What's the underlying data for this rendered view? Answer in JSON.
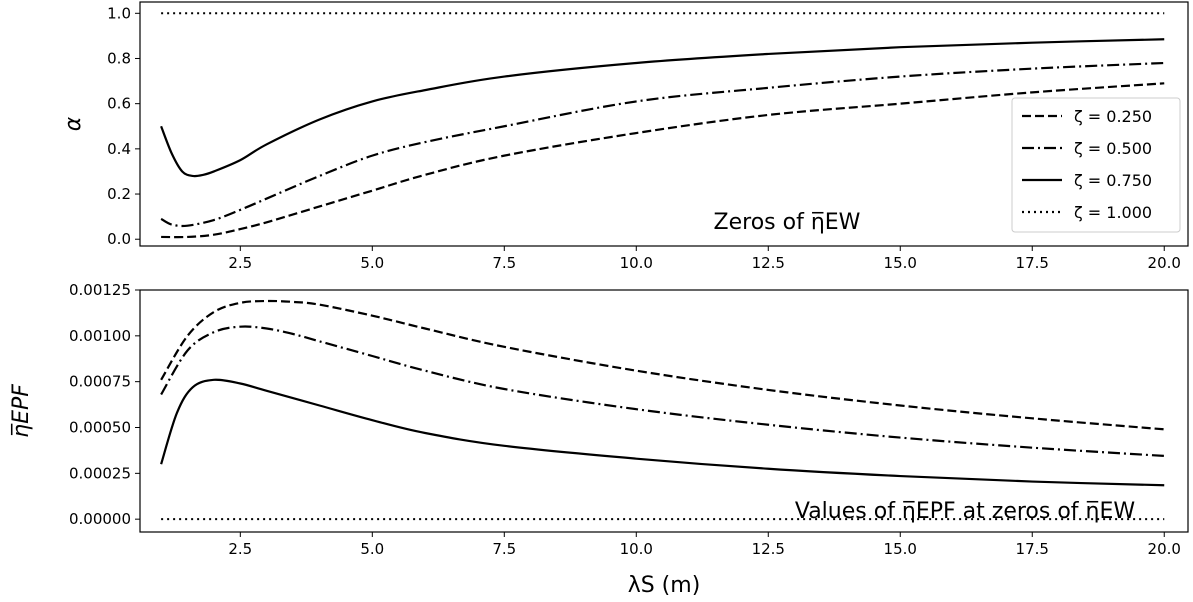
{
  "chart_data": [
    {
      "type": "line",
      "ylabel": "α",
      "annotation": "Zeros of η̅EW",
      "xlim": [
        0.6,
        20.45
      ],
      "ylim": [
        -0.03,
        1.05
      ],
      "xticks": [
        2.5,
        5.0,
        7.5,
        10.0,
        12.5,
        15.0,
        17.5,
        20.0
      ],
      "xtick_labels": [
        "2.5",
        "5.0",
        "7.5",
        "10.0",
        "12.5",
        "15.0",
        "17.5",
        "20.0"
      ],
      "yticks": [
        0.0,
        0.2,
        0.4,
        0.6,
        0.8,
        1.0
      ],
      "ytick_labels": [
        "0.0",
        "0.2",
        "0.4",
        "0.6",
        "0.8",
        "1.0"
      ],
      "legend_position": "right",
      "legend": [
        "ζ = 0.250",
        "ζ = 0.500",
        "ζ = 0.750",
        "ζ = 1.000"
      ],
      "series": [
        {
          "style": "dashed",
          "x": [
            1.0,
            1.5,
            2.0,
            2.5,
            3.0,
            4.0,
            5.0,
            6.0,
            7.5,
            10.0,
            12.5,
            15.0,
            17.5,
            20.0
          ],
          "y": [
            0.01,
            0.01,
            0.02,
            0.045,
            0.075,
            0.145,
            0.215,
            0.285,
            0.37,
            0.47,
            0.55,
            0.6,
            0.65,
            0.69
          ]
        },
        {
          "style": "dashdot",
          "x": [
            1.0,
            1.2,
            1.5,
            2.0,
            2.5,
            3.0,
            4.0,
            5.0,
            6.0,
            7.5,
            10.0,
            12.5,
            15.0,
            17.5,
            20.0
          ],
          "y": [
            0.09,
            0.065,
            0.06,
            0.085,
            0.13,
            0.18,
            0.28,
            0.37,
            0.43,
            0.5,
            0.61,
            0.67,
            0.72,
            0.755,
            0.78
          ]
        },
        {
          "style": "solid",
          "x": [
            1.0,
            1.2,
            1.4,
            1.6,
            1.8,
            2.0,
            2.5,
            3.0,
            4.0,
            5.0,
            6.0,
            7.5,
            10.0,
            12.5,
            15.0,
            17.5,
            20.0
          ],
          "y": [
            0.5,
            0.38,
            0.3,
            0.28,
            0.285,
            0.3,
            0.35,
            0.42,
            0.53,
            0.61,
            0.66,
            0.72,
            0.78,
            0.82,
            0.85,
            0.87,
            0.885
          ]
        },
        {
          "style": "dotted",
          "x": [
            1.0,
            20.0
          ],
          "y": [
            1.0,
            1.0
          ]
        }
      ]
    },
    {
      "type": "line",
      "ylabel": "η̅EPF",
      "xlabel": "λS (m)",
      "annotation": "Values of η̅EPF at zeros of η̅EW",
      "xlim": [
        0.6,
        20.45
      ],
      "ylim": [
        -7e-05,
        0.00125
      ],
      "xticks": [
        2.5,
        5.0,
        7.5,
        10.0,
        12.5,
        15.0,
        17.5,
        20.0
      ],
      "xtick_labels": [
        "2.5",
        "5.0",
        "7.5",
        "10.0",
        "12.5",
        "15.0",
        "17.5",
        "20.0"
      ],
      "yticks": [
        0.0,
        0.00025,
        0.0005,
        0.00075,
        0.001,
        0.00125
      ],
      "ytick_labels": [
        "0.00000",
        "0.00025",
        "0.00050",
        "0.00075",
        "0.00100",
        "0.00125"
      ],
      "series": [
        {
          "style": "dashed",
          "x": [
            1.0,
            1.5,
            2.0,
            2.5,
            3.0,
            3.5,
            4.0,
            5.0,
            6.0,
            7.5,
            10.0,
            12.5,
            15.0,
            17.5,
            20.0
          ],
          "y": [
            0.00076,
            0.001,
            0.00113,
            0.00118,
            0.00119,
            0.001185,
            0.00117,
            0.00111,
            0.00104,
            0.00094,
            0.00081,
            0.000705,
            0.00062,
            0.00055,
            0.00049
          ]
        },
        {
          "style": "dashdot",
          "x": [
            1.0,
            1.5,
            2.0,
            2.5,
            3.0,
            3.5,
            4.0,
            5.0,
            6.0,
            7.5,
            10.0,
            12.5,
            15.0,
            17.5,
            20.0
          ],
          "y": [
            0.00068,
            0.00092,
            0.00102,
            0.00105,
            0.00104,
            0.00101,
            0.00097,
            0.00089,
            0.00081,
            0.00071,
            0.0006,
            0.000515,
            0.000445,
            0.00039,
            0.000345
          ]
        },
        {
          "style": "solid",
          "x": [
            1.0,
            1.3,
            1.6,
            2.0,
            2.5,
            3.0,
            4.0,
            5.0,
            6.0,
            7.5,
            10.0,
            12.5,
            15.0,
            17.5,
            20.0
          ],
          "y": [
            0.0003,
            0.00058,
            0.00072,
            0.00076,
            0.00074,
            0.0007,
            0.00062,
            0.00054,
            0.00047,
            0.0004,
            0.00033,
            0.000275,
            0.000235,
            0.000205,
            0.000185
          ]
        },
        {
          "style": "dotted",
          "x": [
            1.0,
            20.0
          ],
          "y": [
            0.0,
            0.0
          ]
        }
      ]
    }
  ]
}
